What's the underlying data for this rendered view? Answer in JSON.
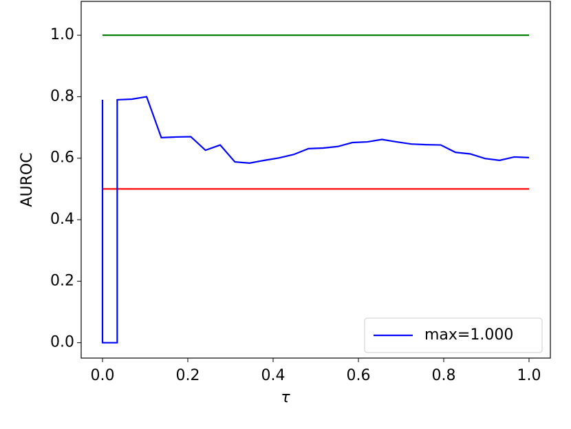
{
  "chart_data": {
    "type": "line",
    "x_label": "τ",
    "y_label": "AUROC",
    "xlim": [
      -0.05,
      1.05
    ],
    "ylim": [
      -0.05,
      1.11
    ],
    "xticks": [
      {
        "value": 0,
        "label": "0.0"
      },
      {
        "value": 0.2,
        "label": "0.2"
      },
      {
        "value": 0.4,
        "label": "0.4"
      },
      {
        "value": 0.6,
        "label": "0.6"
      },
      {
        "value": 0.8,
        "label": "0.8"
      },
      {
        "value": 1,
        "label": "1.0"
      }
    ],
    "yticks": [
      {
        "value": 0,
        "label": "0.0"
      },
      {
        "value": 0.2,
        "label": "0.2"
      },
      {
        "value": 0.4,
        "label": "0.4"
      },
      {
        "value": 0.6,
        "label": "0.6"
      },
      {
        "value": 0.8,
        "label": "0.8"
      },
      {
        "value": 1,
        "label": "1.0"
      }
    ],
    "grid": false,
    "legend": "lower right",
    "series": [
      {
        "name": "max=1.000",
        "color": "#0000ff",
        "in_legend": true,
        "x": [
          0,
          0,
          0.0345,
          0.0345,
          0.069,
          0.1034,
          0.1379,
          0.1724,
          0.2069,
          0.2414,
          0.2759,
          0.3103,
          0.3448,
          0.3793,
          0.4138,
          0.4483,
          0.4828,
          0.5172,
          0.5517,
          0.5862,
          0.6207,
          0.6552,
          0.6897,
          0.7241,
          0.7586,
          0.7931,
          0.8276,
          0.8621,
          0.8966,
          0.931,
          0.9655,
          1.0
        ],
        "values": [
          0.79,
          0,
          0,
          0.79,
          0.792,
          0.8,
          0.667,
          0.669,
          0.67,
          0.626,
          0.643,
          0.588,
          0.584,
          0.593,
          0.601,
          0.612,
          0.631,
          0.633,
          0.638,
          0.651,
          0.653,
          0.661,
          0.653,
          0.646,
          0.644,
          0.643,
          0.619,
          0.614,
          0.599,
          0.593,
          0.604,
          0.602
        ]
      },
      {
        "color": "#008000",
        "x": [
          0,
          1
        ],
        "values": [
          1,
          1
        ]
      },
      {
        "color": "#ff0000",
        "x": [
          0,
          1
        ],
        "values": [
          0.5,
          0.5
        ]
      }
    ]
  }
}
